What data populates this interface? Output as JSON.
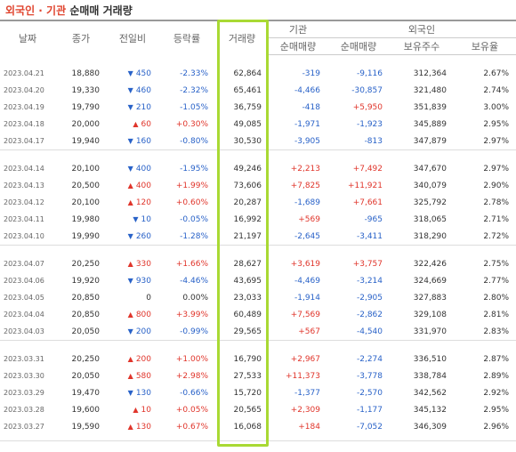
{
  "title": {
    "part1": "외국인 · 기관",
    "part2": "순매매 거래량"
  },
  "headers": {
    "date": "날짜",
    "close": "종가",
    "change": "전일비",
    "rate": "등락률",
    "volume": "거래량",
    "inst": "기관",
    "foreign": "외국인",
    "inst_net": "순매매량",
    "foreign_net": "순매매량",
    "holdings": "보유주수",
    "ratio": "보유율"
  },
  "colors": {
    "up": "#e0352b",
    "down": "#2962c8",
    "highlight": "#a9d934"
  },
  "groups": [
    [
      {
        "date": "2023.04.21",
        "close": "18,880",
        "dir": "down",
        "change": "450",
        "rate": "-2.33%",
        "volume": "62,864",
        "inst": "-319",
        "foreign": "-9,116",
        "holdings": "312,364",
        "ratio": "2.67%"
      },
      {
        "date": "2023.04.20",
        "close": "19,330",
        "dir": "down",
        "change": "460",
        "rate": "-2.32%",
        "volume": "65,461",
        "inst": "-4,466",
        "foreign": "-30,857",
        "holdings": "321,480",
        "ratio": "2.74%"
      },
      {
        "date": "2023.04.19",
        "close": "19,790",
        "dir": "down",
        "change": "210",
        "rate": "-1.05%",
        "volume": "36,759",
        "inst": "-418",
        "foreign": "+5,950",
        "holdings": "351,839",
        "ratio": "3.00%"
      },
      {
        "date": "2023.04.18",
        "close": "20,000",
        "dir": "up",
        "change": "60",
        "rate": "+0.30%",
        "volume": "49,085",
        "inst": "-1,971",
        "foreign": "-1,923",
        "holdings": "345,889",
        "ratio": "2.95%"
      },
      {
        "date": "2023.04.17",
        "close": "19,940",
        "dir": "down",
        "change": "160",
        "rate": "-0.80%",
        "volume": "30,530",
        "inst": "-3,905",
        "foreign": "-813",
        "holdings": "347,879",
        "ratio": "2.97%"
      }
    ],
    [
      {
        "date": "2023.04.14",
        "close": "20,100",
        "dir": "down",
        "change": "400",
        "rate": "-1.95%",
        "volume": "49,246",
        "inst": "+2,213",
        "foreign": "+7,492",
        "holdings": "347,670",
        "ratio": "2.97%"
      },
      {
        "date": "2023.04.13",
        "close": "20,500",
        "dir": "up",
        "change": "400",
        "rate": "+1.99%",
        "volume": "73,606",
        "inst": "+7,825",
        "foreign": "+11,921",
        "holdings": "340,079",
        "ratio": "2.90%"
      },
      {
        "date": "2023.04.12",
        "close": "20,100",
        "dir": "up",
        "change": "120",
        "rate": "+0.60%",
        "volume": "20,287",
        "inst": "-1,689",
        "foreign": "+7,661",
        "holdings": "325,792",
        "ratio": "2.78%"
      },
      {
        "date": "2023.04.11",
        "close": "19,980",
        "dir": "down",
        "change": "10",
        "rate": "-0.05%",
        "volume": "16,992",
        "inst": "+569",
        "foreign": "-965",
        "holdings": "318,065",
        "ratio": "2.71%"
      },
      {
        "date": "2023.04.10",
        "close": "19,990",
        "dir": "down",
        "change": "260",
        "rate": "-1.28%",
        "volume": "21,197",
        "inst": "-2,645",
        "foreign": "-3,411",
        "holdings": "318,290",
        "ratio": "2.72%"
      }
    ],
    [
      {
        "date": "2023.04.07",
        "close": "20,250",
        "dir": "up",
        "change": "330",
        "rate": "+1.66%",
        "volume": "28,627",
        "inst": "+3,619",
        "foreign": "+3,757",
        "holdings": "322,426",
        "ratio": "2.75%"
      },
      {
        "date": "2023.04.06",
        "close": "19,920",
        "dir": "down",
        "change": "930",
        "rate": "-4.46%",
        "volume": "43,695",
        "inst": "-4,469",
        "foreign": "-3,214",
        "holdings": "324,669",
        "ratio": "2.77%"
      },
      {
        "date": "2023.04.05",
        "close": "20,850",
        "dir": "none",
        "change": "0",
        "rate": "0.00%",
        "volume": "23,033",
        "inst": "-1,914",
        "foreign": "-2,905",
        "holdings": "327,883",
        "ratio": "2.80%"
      },
      {
        "date": "2023.04.04",
        "close": "20,850",
        "dir": "up",
        "change": "800",
        "rate": "+3.99%",
        "volume": "60,489",
        "inst": "+7,569",
        "foreign": "-2,862",
        "holdings": "329,108",
        "ratio": "2.81%"
      },
      {
        "date": "2023.04.03",
        "close": "20,050",
        "dir": "down",
        "change": "200",
        "rate": "-0.99%",
        "volume": "29,565",
        "inst": "+567",
        "foreign": "-4,540",
        "holdings": "331,970",
        "ratio": "2.83%"
      }
    ],
    [
      {
        "date": "2023.03.31",
        "close": "20,250",
        "dir": "up",
        "change": "200",
        "rate": "+1.00%",
        "volume": "16,790",
        "inst": "+2,967",
        "foreign": "-2,274",
        "holdings": "336,510",
        "ratio": "2.87%"
      },
      {
        "date": "2023.03.30",
        "close": "20,050",
        "dir": "up",
        "change": "580",
        "rate": "+2.98%",
        "volume": "27,533",
        "inst": "+11,373",
        "foreign": "-3,778",
        "holdings": "338,784",
        "ratio": "2.89%"
      },
      {
        "date": "2023.03.29",
        "close": "19,470",
        "dir": "down",
        "change": "130",
        "rate": "-0.66%",
        "volume": "15,720",
        "inst": "-1,377",
        "foreign": "-2,570",
        "holdings": "342,562",
        "ratio": "2.92%"
      },
      {
        "date": "2023.03.28",
        "close": "19,600",
        "dir": "up",
        "change": "10",
        "rate": "+0.05%",
        "volume": "20,565",
        "inst": "+2,309",
        "foreign": "-1,177",
        "holdings": "345,132",
        "ratio": "2.95%"
      },
      {
        "date": "2023.03.27",
        "close": "19,590",
        "dir": "up",
        "change": "130",
        "rate": "+0.67%",
        "volume": "16,068",
        "inst": "+184",
        "foreign": "-7,052",
        "holdings": "346,309",
        "ratio": "2.96%"
      }
    ]
  ]
}
